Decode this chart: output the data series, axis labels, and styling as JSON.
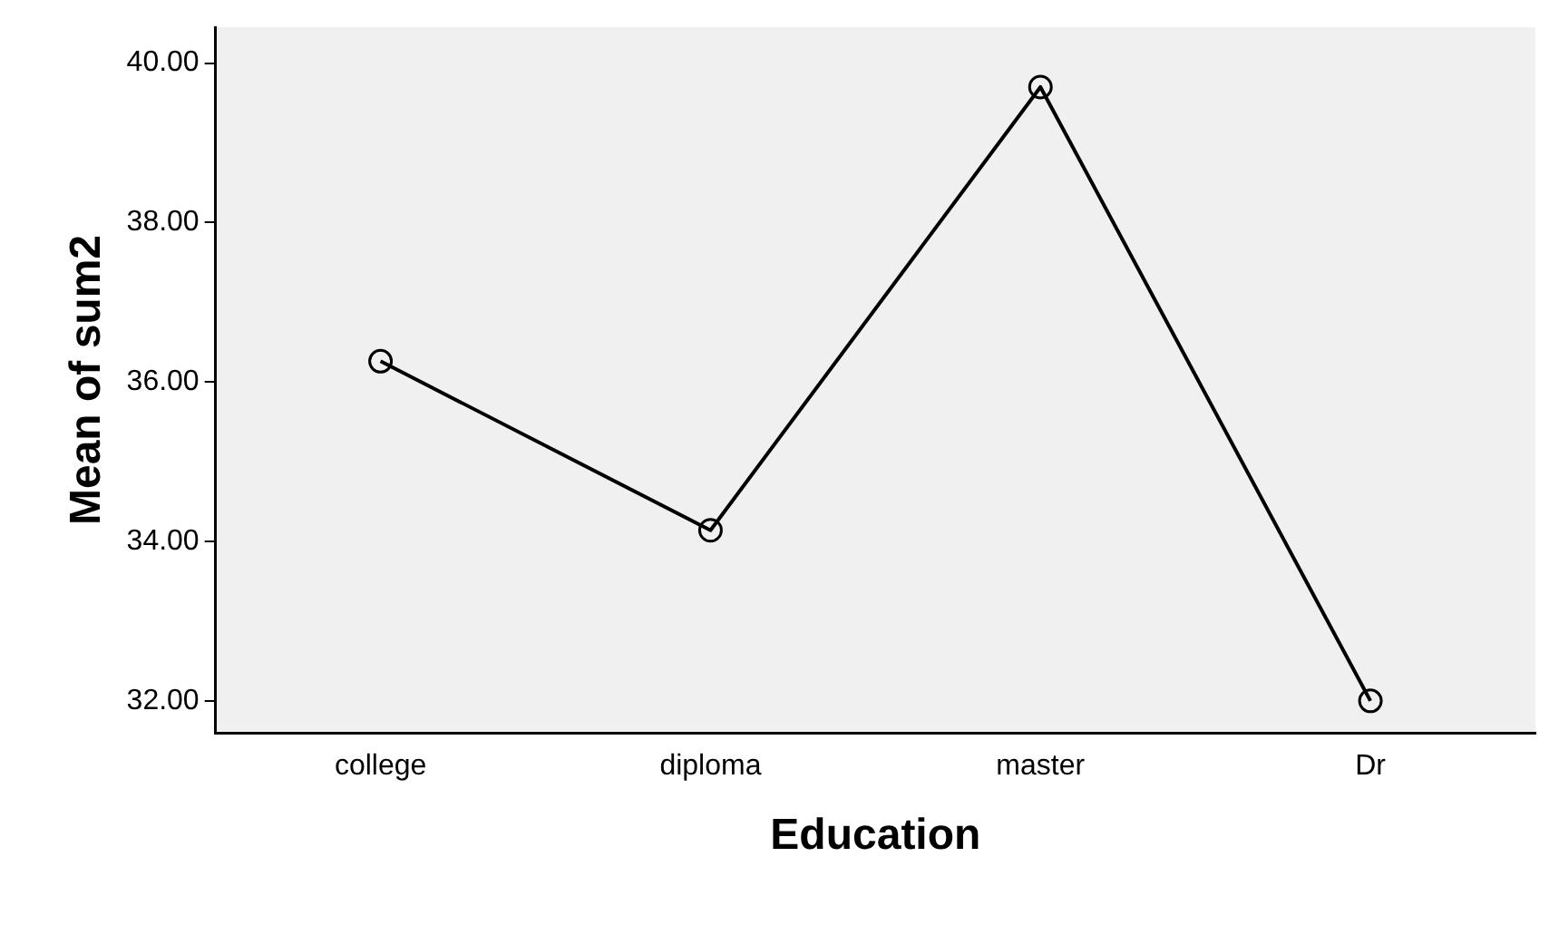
{
  "chart_data": {
    "type": "line",
    "xlabel": "Education",
    "ylabel": "Mean of sum2",
    "categories": [
      "college",
      "diploma",
      "master",
      "Dr"
    ],
    "series": [
      {
        "color": "#000000",
        "values": [
          36.26,
          34.14,
          39.7,
          32.0
        ]
      }
    ],
    "ylim": [
      31.6,
      40.45
    ],
    "yticks": [
      {
        "value": 32,
        "label": "32.00"
      },
      {
        "value": 34,
        "label": "34.00"
      },
      {
        "value": 36,
        "label": "36.00"
      },
      {
        "value": 38,
        "label": "38.00"
      },
      {
        "value": 40,
        "label": "40.00"
      }
    ],
    "grid": false,
    "legend": false,
    "marker": "circle",
    "line_style": "solid"
  }
}
